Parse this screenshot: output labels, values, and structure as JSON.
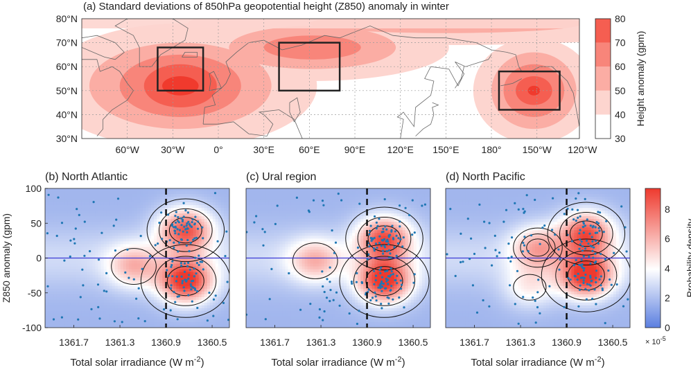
{
  "chart_data": [
    {
      "type": "heatmap",
      "panel": "a",
      "title": "(a) Standard deviations of 850hPa geopotential height (Z850) anomaly in winter",
      "y_ticks": [
        "80°N",
        "70°N",
        "60°N",
        "50°N",
        "40°N",
        "30°N"
      ],
      "x_ticks": [
        "60°W",
        "30°W",
        "0°",
        "30°E",
        "60°E",
        "90°E",
        "120°E",
        "150°E",
        "180°",
        "150°W",
        "120°W"
      ],
      "colorbar": {
        "label": "Height anomaly (gpm)",
        "ticks": [
          80,
          70,
          60,
          50,
          40,
          30
        ],
        "levels": [
          30,
          40,
          50,
          60,
          70,
          80
        ],
        "colors": [
          "#ffffff",
          "#fdd5cf",
          "#fbada4",
          "#f8857a",
          "#f55e51",
          "#f03a2d"
        ]
      },
      "boxes": [
        {
          "region": "North Atlantic",
          "lon": [
            -40,
            -10
          ],
          "lat": [
            50,
            68
          ]
        },
        {
          "region": "Ural region",
          "lon": [
            40,
            80
          ],
          "lat": [
            50,
            70
          ]
        },
        {
          "region": "North Pacific",
          "lon": [
            -175,
            -135
          ],
          "lat": [
            42,
            58
          ]
        }
      ]
    },
    {
      "type": "scatter",
      "panel": "b",
      "title": "(b) North Atlantic",
      "xlabel": "Total solar irradiance (W m",
      "xlabel_sup": "-2",
      "xlabel_end": ")",
      "ylabel": "Z850 anomaly (gpm)",
      "x_reversed": true,
      "xlim": [
        1361.95,
        1360.35
      ],
      "ylim": [
        -100,
        100
      ],
      "x_ticks": [
        "1361.7",
        "1361.3",
        "1360.9",
        "1360.5"
      ],
      "y_ticks": [
        "100",
        "50",
        "0",
        "-50",
        "-100"
      ],
      "threshold_x": 1360.9,
      "density_peaks": [
        {
          "x": 1360.73,
          "y": 40,
          "strength": 0.85
        },
        {
          "x": 1360.73,
          "y": -33,
          "strength": 1.0
        },
        {
          "x": 1361.18,
          "y": -12,
          "strength": 0.45
        }
      ]
    },
    {
      "type": "scatter",
      "panel": "c",
      "title": "(c) Ural region",
      "xlabel": "Total solar irradiance (W m",
      "xlabel_sup": "-2",
      "xlabel_end": ")",
      "x_reversed": true,
      "xlim": [
        1361.95,
        1360.35
      ],
      "ylim": [
        -100,
        100
      ],
      "x_ticks": [
        "1361.7",
        "1361.3",
        "1360.9",
        "1360.5"
      ],
      "threshold_x": 1360.9,
      "density_peaks": [
        {
          "x": 1360.75,
          "y": 28,
          "strength": 0.85
        },
        {
          "x": 1360.75,
          "y": -33,
          "strength": 1.0
        },
        {
          "x": 1361.35,
          "y": -4,
          "strength": 0.45
        }
      ]
    },
    {
      "type": "scatter",
      "panel": "d",
      "title": "(d) North Pacific",
      "xlabel": "Total solar irradiance (W m",
      "xlabel_sup": "-2",
      "xlabel_end": ")",
      "x_reversed": true,
      "xlim": [
        1361.95,
        1360.35
      ],
      "ylim": [
        -100,
        100
      ],
      "x_ticks": [
        "1361.7",
        "1361.3",
        "1360.9",
        "1360.5"
      ],
      "threshold_x": 1360.9,
      "density_peaks": [
        {
          "x": 1360.73,
          "y": 35,
          "strength": 0.85
        },
        {
          "x": 1360.73,
          "y": -25,
          "strength": 1.0
        },
        {
          "x": 1361.15,
          "y": 15,
          "strength": 0.5
        },
        {
          "x": 1361.22,
          "y": -42,
          "strength": 0.3
        }
      ]
    }
  ],
  "colorbar_bottom": {
    "label": "Probability density",
    "ticks": [
      "8",
      "6",
      "4",
      "2",
      "0"
    ],
    "exponent": "× 10",
    "exponent_power": "-5",
    "colors": [
      "#5b7fe0",
      "#ffffff",
      "#ee3a2e"
    ]
  }
}
